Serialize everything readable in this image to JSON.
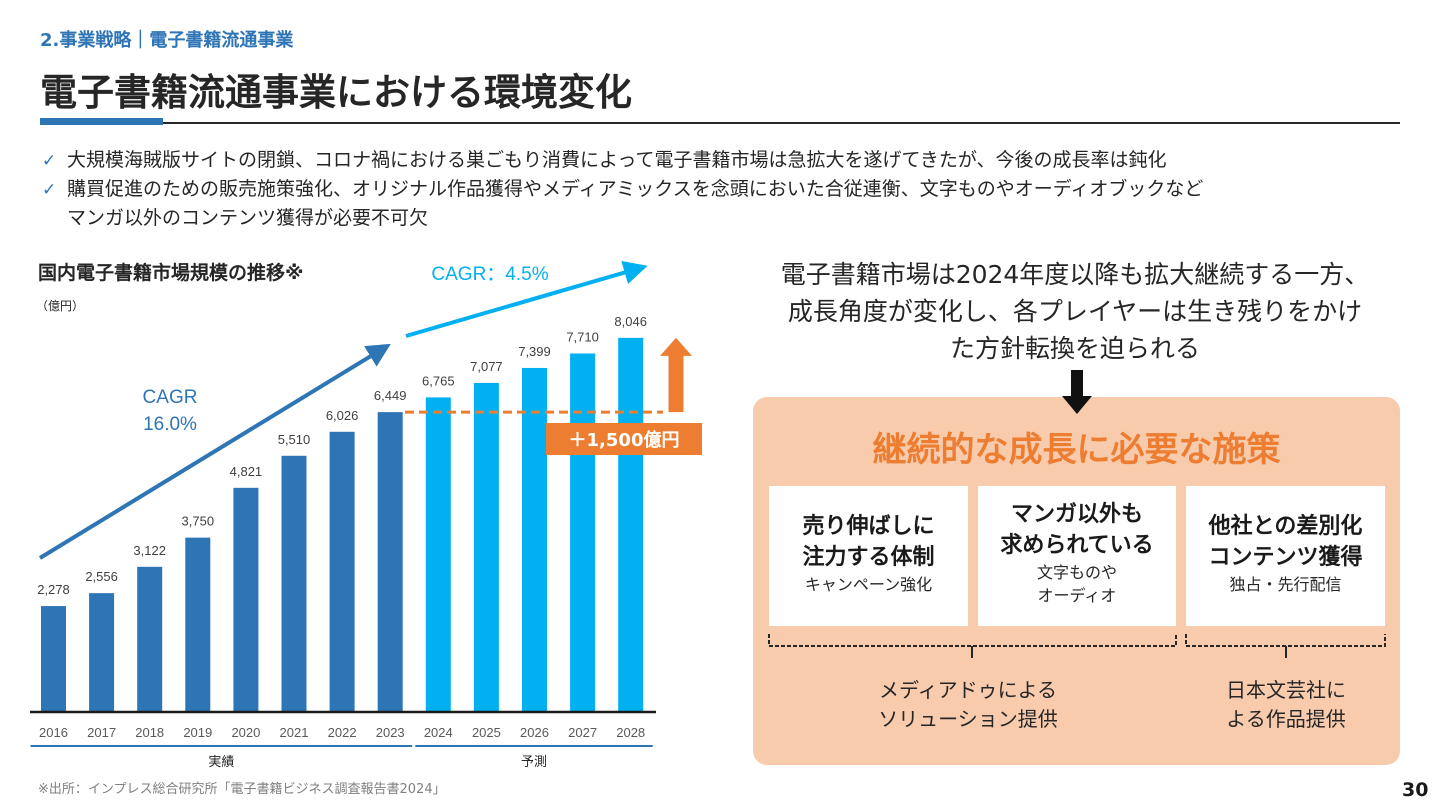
{
  "header": {
    "breadcrumb": "2.事業戦略｜電子書籍流通事業",
    "title": "電子書籍流通事業における環境変化"
  },
  "bullets": [
    {
      "icon": "check-icon",
      "text": "大規模海賊版サイトの閉鎖、コロナ禍における巣ごもり消費によって電子書籍市場は急拡大を遂げてきたが、今後の成長率は鈍化"
    },
    {
      "icon": "check-icon",
      "text": "購買促進のための販売施策強化、オリジナル作品獲得やメディアミックスを念頭においた合従連衡、文字ものやオーディオブックなど",
      "continuation": "マンガ以外のコンテンツ獲得が必要不可欠"
    }
  ],
  "chart_data": {
    "type": "bar",
    "title": "国内電子書籍市場規模の推移※",
    "ylabel": "（億円）",
    "xlabel": "",
    "categories": [
      "2016",
      "2017",
      "2018",
      "2019",
      "2020",
      "2021",
      "2022",
      "2023",
      "2024",
      "2025",
      "2026",
      "2027",
      "2028"
    ],
    "values": [
      2278,
      2556,
      3122,
      3750,
      4821,
      5510,
      6026,
      6449,
      6765,
      7077,
      7399,
      7710,
      8046
    ],
    "value_labels": [
      "2,278",
      "2,556",
      "3,122",
      "3,750",
      "4,821",
      "5,510",
      "6,026",
      "6,449",
      "6,765",
      "7,077",
      "7,399",
      "7,710",
      "8,046"
    ],
    "series": [
      {
        "name": "実績",
        "categories": [
          "2016",
          "2017",
          "2018",
          "2019",
          "2020",
          "2021",
          "2022",
          "2023"
        ],
        "color": "#2E75B6"
      },
      {
        "name": "予測",
        "categories": [
          "2024",
          "2025",
          "2026",
          "2027",
          "2028"
        ],
        "color": "#00B0F0"
      }
    ],
    "groups": [
      {
        "label": "実績",
        "from": "2016",
        "to": "2023"
      },
      {
        "label": "予測",
        "from": "2024",
        "to": "2028"
      }
    ],
    "ylim": [
      0,
      8500
    ],
    "grid": false,
    "annotations": {
      "cagr_actual_line1": "CAGR",
      "cagr_actual_line2": "16.0%",
      "cagr_forecast": "CAGR：4.5%",
      "increase_label": "＋1,500億円",
      "increase_base_value": 6449,
      "increase_target_value": 8046
    },
    "colors": {
      "actual": "#2E75B6",
      "forecast": "#00B0F0",
      "accent": "#ED7D31"
    }
  },
  "source_note": "※出所：インプレス総合研究所「電子書籍ビジネス調査報告書2024」",
  "right_panel": {
    "lead_lines": [
      "電子書籍市場は2024年度以降も拡大継続する一方、",
      "成長角度が変化し、各プレイヤーは生き残りをかけ",
      "た方針転換を迫られる"
    ],
    "panel_title": "継続的な成長に必要な施策",
    "boxes": [
      {
        "main": [
          "売り伸ばしに",
          "注力する体制"
        ],
        "sub": [
          "キャンペーン強化"
        ]
      },
      {
        "main": [
          "マンガ以外も",
          "求められている"
        ],
        "sub": [
          "文字ものや",
          "オーディオ"
        ]
      },
      {
        "main": [
          "他社との差別化",
          "コンテンツ獲得"
        ],
        "sub": [
          "独占・先行配信"
        ]
      }
    ],
    "providers": [
      {
        "lines": [
          "メディアドゥによる",
          "ソリューション提供"
        ]
      },
      {
        "lines": [
          "日本文芸社に",
          "よる作品提供"
        ]
      }
    ]
  },
  "page_number": "30",
  "colors": {
    "brand_blue": "#2E75B6",
    "orange": "#ED7D31",
    "panel_bg": "#F8CBAD"
  }
}
